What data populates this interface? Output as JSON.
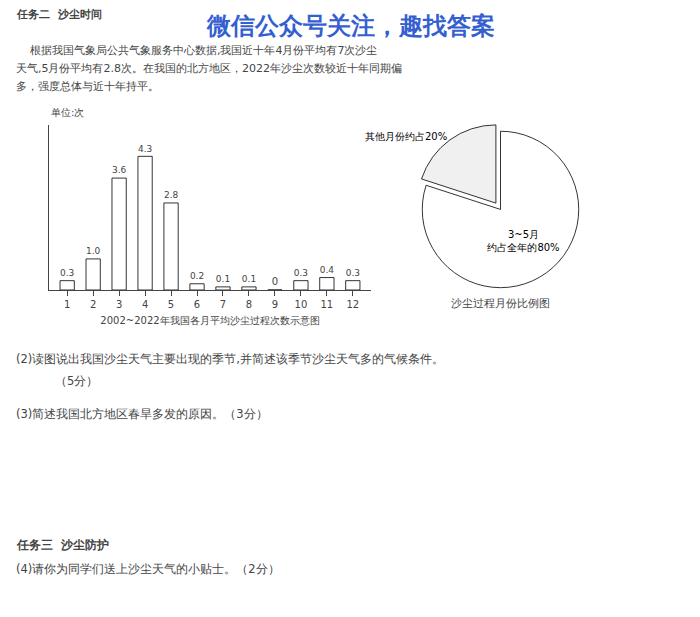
{
  "chart_data": [
    {
      "type": "bar",
      "x": [
        1,
        2,
        3,
        4,
        5,
        6,
        7,
        8,
        9,
        10,
        11,
        12
      ],
      "values": [
        0.3,
        1.0,
        3.6,
        4.3,
        2.8,
        0.2,
        0.1,
        0.1,
        0,
        0.3,
        0.4,
        0.3
      ],
      "value_labels": [
        "0.3",
        "1.0",
        "3.6",
        "4.3",
        "2.8",
        "0.2",
        "0.1",
        "0.1",
        "0",
        "0.3",
        "0.4",
        "0.3"
      ],
      "data_labels": true,
      "color": "#ffffff",
      "xlim": [
        0.3,
        12.7
      ],
      "xticks": [
        1,
        2,
        3,
        4,
        5,
        6,
        7,
        8,
        9,
        10,
        11,
        12
      ],
      "ylim": [
        0,
        5.3
      ],
      "yticks": [],
      "tick_labels": "x",
      "grid": false,
      "xlabel": "2002~2022年我国各月平均沙尘过程次数示意图",
      "ylabel": "单位:次",
      "annotations": [
        {
          "text": "任务二  沙尘时间"
        },
        {
          "text": "微信公众号关注，趣找答案",
          "color": "#1e4fcc"
        },
        {
          "text": "    根据我国气象局公共气象服务中心数据,我国近十年4月份平均有7次沙尘"
        },
        {
          "text": "天气,5月份平均有2.8次。在我国的北方地区，2022年沙尘次数较近十年同期偏"
        },
        {
          "text": "多，强度总体与近十年持平。"
        },
        {
          "text": "(2)读图说出我国沙尘天气主要出现的季节,并简述该季节沙尘天气多的气候条件。"
        },
        {
          "text": "   （5分）"
        },
        {
          "text": "(3)简述我国北方地区春旱多发的原因。（3分）"
        },
        {
          "text": "任务三  沙尘防护"
        },
        {
          "text": "(4)请你为同学们送上沙尘天气的小贴士。（2分）"
        }
      ]
    },
    {
      "type": "pie",
      "title": "沙尘过程月份比例图",
      "categories": [
        "3~5月\n约占全年的80%",
        "其他月份约占20%"
      ],
      "values": [
        80,
        20
      ],
      "colors": [
        "#ffffff",
        "#f0f0f0"
      ]
    }
  ]
}
